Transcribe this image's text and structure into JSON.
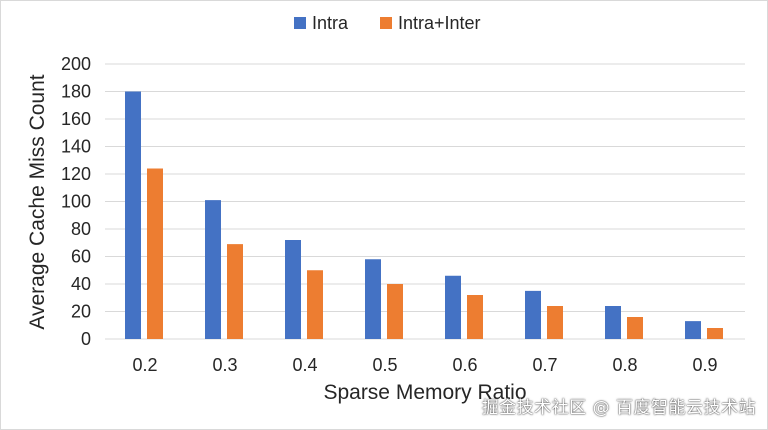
{
  "chart_data": {
    "type": "bar",
    "title": "",
    "xlabel": "Sparse Memory Ratio",
    "ylabel": "Average Cache Miss Count",
    "categories": [
      "0.2",
      "0.3",
      "0.4",
      "0.5",
      "0.6",
      "0.7",
      "0.8",
      "0.9"
    ],
    "ylim": [
      0,
      200
    ],
    "yticks": [
      "0",
      "20",
      "40",
      "60",
      "80",
      "100",
      "120",
      "140",
      "160",
      "180",
      "200"
    ],
    "grid": true,
    "legend_position": "top",
    "series": [
      {
        "name": "Intra",
        "color": "#4472C4",
        "values": [
          180,
          101,
          72,
          58,
          46,
          35,
          24,
          13
        ]
      },
      {
        "name": "Intra+Inter",
        "color": "#ED7D31",
        "values": [
          124,
          69,
          50,
          40,
          32,
          24,
          16,
          8
        ]
      }
    ]
  },
  "watermark": "掘金技术社区 @ 百度智能云技术站"
}
